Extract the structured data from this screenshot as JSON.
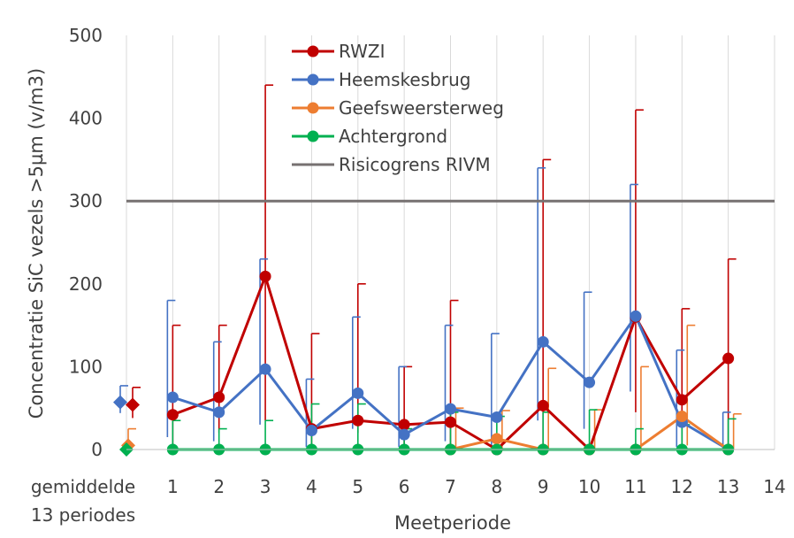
{
  "chart_data": {
    "type": "line",
    "title": "",
    "xlabel": "Meetperiode",
    "ylabel": "Concentratie SiC vezels >5µm (v/m3)",
    "ylim": [
      0,
      500
    ],
    "yticks": [
      0,
      100,
      200,
      300,
      400,
      500
    ],
    "xlim": [
      0,
      14
    ],
    "x_tick_labels": [
      "1",
      "2",
      "3",
      "4",
      "5",
      "6",
      "7",
      "8",
      "9",
      "10",
      "11",
      "12",
      "13",
      "14"
    ],
    "x_zero_label": [
      "gemiddelde",
      "13 periodes"
    ],
    "grid": "vertical",
    "legend_position": "top-center",
    "threshold": {
      "name": "Risicogrens RIVM",
      "value": 300,
      "color": "#767171"
    },
    "series": [
      {
        "name": "RWZI",
        "color": "#C00000",
        "x": [
          1,
          2,
          3,
          4,
          5,
          6,
          7,
          8,
          9,
          10,
          11,
          12,
          13
        ],
        "values": [
          42,
          63,
          209,
          25,
          35,
          30,
          33,
          0,
          53,
          0,
          160,
          60,
          110
        ],
        "error_upper": [
          150,
          150,
          440,
          140,
          200,
          100,
          180,
          0,
          350,
          0,
          410,
          170,
          230
        ],
        "error_lower": [
          5,
          20,
          35,
          5,
          20,
          5,
          5,
          0,
          0,
          0,
          45,
          5,
          0
        ],
        "average": 54,
        "average_upper": 75,
        "average_lower": 38
      },
      {
        "name": "Heemskesbrug",
        "color": "#4472C4",
        "x": [
          1,
          2,
          3,
          4,
          5,
          6,
          7,
          8,
          9,
          10,
          11,
          12,
          13
        ],
        "values": [
          63,
          45,
          97,
          23,
          68,
          18,
          49,
          39,
          130,
          81,
          161,
          33,
          0
        ],
        "error_upper": [
          180,
          130,
          230,
          85,
          160,
          100,
          150,
          140,
          340,
          190,
          320,
          120,
          45
        ],
        "error_lower": [
          15,
          10,
          30,
          3,
          25,
          3,
          10,
          5,
          35,
          25,
          70,
          3,
          0
        ],
        "average": 57,
        "average_upper": 77,
        "average_lower": 44
      },
      {
        "name": "Geefsweersterweg",
        "color": "#ED7D31",
        "x": [
          7,
          8,
          9,
          10,
          11,
          12,
          13
        ],
        "values": [
          0,
          13,
          0,
          0,
          0,
          40,
          0
        ],
        "error_upper": [
          50,
          47,
          98,
          48,
          100,
          150,
          43
        ],
        "error_lower": [
          0,
          0,
          0,
          0,
          0,
          5,
          0
        ],
        "average": 5,
        "average_upper": 25,
        "average_lower": 0
      },
      {
        "name": "Achtergrond",
        "color": "#00B050",
        "x": [
          1,
          2,
          3,
          4,
          5,
          6,
          7,
          8,
          9,
          10,
          11,
          12,
          13
        ],
        "values": [
          0,
          0,
          0,
          0,
          0,
          0,
          0,
          0,
          0,
          0,
          0,
          0,
          0
        ],
        "error_upper": [
          35,
          25,
          35,
          55,
          55,
          25,
          45,
          40,
          45,
          48,
          25,
          30,
          37
        ],
        "error_lower": [
          0,
          0,
          0,
          0,
          0,
          0,
          0,
          0,
          0,
          0,
          0,
          0,
          0
        ],
        "average": 0,
        "average_upper": 0,
        "average_lower": 0
      }
    ]
  }
}
